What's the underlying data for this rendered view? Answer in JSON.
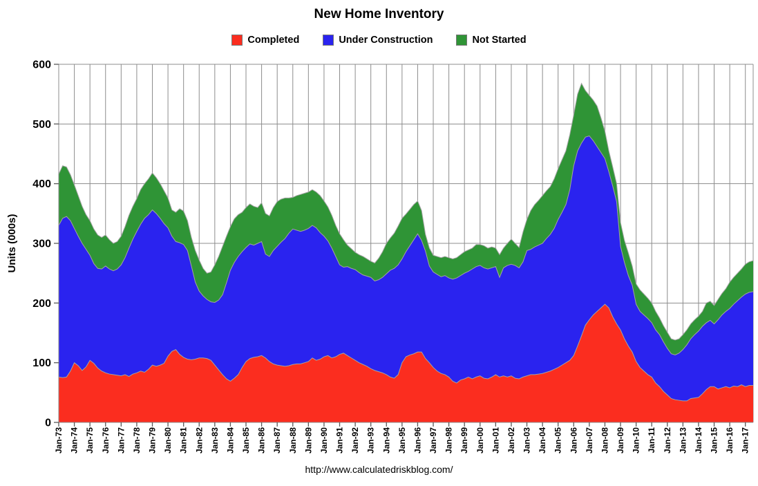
{
  "title": "New Home Inventory",
  "footer_url": "http://www.calculatedriskblog.com/",
  "colors": {
    "completed": "#fb2d1f",
    "under_construction": "#2a23ef",
    "not_started": "#2f9436",
    "grid": "#8c8c8c",
    "area_outline": "#a3a3a3",
    "tick": "#595959",
    "text": "#000000"
  },
  "legend": [
    {
      "label": "Completed",
      "color": "#fb2d1f"
    },
    {
      "label": "Under Construction",
      "color": "#2a23ef"
    },
    {
      "label": "Not Started",
      "color": "#2f9436"
    }
  ],
  "chart_data": {
    "type": "area",
    "stacked": true,
    "title": "New Home Inventory",
    "ylabel": "Units (000s)",
    "ylim": [
      0,
      600
    ],
    "y_ticks": [
      0,
      100,
      200,
      300,
      400,
      500,
      600
    ],
    "grid": true,
    "legend_position": "top",
    "x_start": "Jan-1973",
    "x_end": "Jul-2017",
    "points_per_year": 4,
    "x_tick_labels": [
      "Jan-73",
      "Jan-74",
      "Jan-75",
      "Jan-76",
      "Jan-77",
      "Jan-78",
      "Jan-79",
      "Jan-80",
      "Jan-81",
      "Jan-82",
      "Jan-83",
      "Jan-84",
      "Jan-85",
      "Jan-86",
      "Jan-87",
      "Jan-88",
      "Jan-89",
      "Jan-90",
      "Jan-91",
      "Jan-92",
      "Jan-93",
      "Jan-94",
      "Jan-95",
      "Jan-96",
      "Jan-97",
      "Jan-98",
      "Jan-99",
      "Jan-00",
      "Jan-01",
      "Jan-02",
      "Jan-03",
      "Jan-04",
      "Jan-05",
      "Jan-06",
      "Jan-07",
      "Jan-08",
      "Jan-09",
      "Jan-10",
      "Jan-11",
      "Jan-12",
      "Jan-13",
      "Jan-14",
      "Jan-15",
      "Jan-16",
      "Jan-17"
    ],
    "series": [
      {
        "name": "Completed",
        "color": "#fb2d1f",
        "values": [
          76,
          75,
          76,
          86,
          100,
          95,
          87,
          93,
          104,
          99,
          91,
          86,
          83,
          81,
          80,
          79,
          78,
          80,
          77,
          81,
          83,
          86,
          84,
          89,
          96,
          94,
          96,
          99,
          111,
          119,
          122,
          114,
          109,
          106,
          105,
          106,
          108,
          108,
          107,
          104,
          96,
          88,
          80,
          73,
          69,
          74,
          80,
          92,
          102,
          107,
          109,
          110,
          112,
          108,
          102,
          98,
          96,
          95,
          94,
          95,
          97,
          98,
          98,
          100,
          102,
          108,
          104,
          106,
          110,
          112,
          108,
          110,
          114,
          116,
          112,
          108,
          104,
          100,
          97,
          94,
          90,
          87,
          85,
          83,
          80,
          76,
          74,
          80,
          100,
          110,
          113,
          115,
          118,
          118,
          107,
          100,
          92,
          86,
          82,
          80,
          76,
          69,
          66,
          71,
          73,
          76,
          73,
          76,
          78,
          74,
          73,
          76,
          80,
          76,
          78,
          76,
          78,
          74,
          73,
          76,
          78,
          80,
          80,
          81,
          82,
          84,
          86,
          89,
          92,
          96,
          100,
          104,
          112,
          128,
          145,
          163,
          172,
          180,
          186,
          192,
          198,
          192,
          177,
          165,
          155,
          140,
          128,
          118,
          102,
          92,
          86,
          80,
          76,
          66,
          60,
          52,
          46,
          40,
          38,
          37,
          36,
          36,
          40,
          41,
          42,
          48,
          55,
          60,
          60,
          56,
          58,
          60,
          58,
          61,
          60,
          63,
          60,
          62,
          62
        ]
      },
      {
        "name": "Under Construction",
        "color": "#2a23ef",
        "values": [
          254,
          267,
          269,
          252,
          225,
          217,
          213,
          197,
          176,
          167,
          167,
          171,
          179,
          176,
          174,
          178,
          186,
          196,
          215,
          226,
          237,
          246,
          258,
          259,
          260,
          256,
          246,
          234,
          215,
          193,
          181,
          187,
          189,
          182,
          157,
          129,
          112,
          104,
          99,
          98,
          105,
          117,
          134,
          161,
          186,
          194,
          198,
          194,
          191,
          192,
          188,
          190,
          191,
          174,
          176,
          190,
          199,
          207,
          214,
          222,
          227,
          224,
          222,
          222,
          223,
          222,
          222,
          212,
          202,
          192,
          184,
          168,
          150,
          144,
          149,
          150,
          152,
          151,
          150,
          151,
          153,
          150,
          154,
          160,
          169,
          179,
          184,
          184,
          174,
          176,
          183,
          191,
          198,
          187,
          180,
          162,
          160,
          162,
          162,
          166,
          166,
          171,
          176,
          175,
          177,
          177,
          184,
          185,
          185,
          185,
          184,
          183,
          181,
          167,
          181,
          187,
          187,
          189,
          186,
          193,
          210,
          210,
          214,
          216,
          218,
          224,
          229,
          236,
          248,
          256,
          265,
          286,
          318,
          327,
          323,
          315,
          308,
          292,
          276,
          260,
          244,
          228,
          219,
          205,
          140,
          128,
          118,
          112,
          96,
          94,
          94,
          94,
          91,
          89,
          87,
          83,
          78,
          75,
          75,
          79,
          86,
          94,
          100,
          106,
          111,
          113,
          112,
          111,
          105,
          116,
          122,
          126,
          133,
          137,
          144,
          147,
          155,
          156,
          157
        ]
      },
      {
        "name": "Not Started",
        "color": "#2f9436",
        "values": [
          86,
          88,
          83,
          77,
          73,
          68,
          62,
          58,
          58,
          58,
          56,
          53,
          52,
          49,
          46,
          46,
          48,
          52,
          55,
          55,
          55,
          58,
          58,
          60,
          62,
          60,
          58,
          55,
          50,
          44,
          49,
          57,
          56,
          50,
          48,
          53,
          52,
          46,
          44,
          50,
          63,
          73,
          81,
          78,
          73,
          73,
          70,
          66,
          67,
          67,
          65,
          60,
          65,
          68,
          68,
          72,
          75,
          72,
          68,
          59,
          53,
          58,
          62,
          62,
          61,
          60,
          60,
          62,
          59,
          57,
          55,
          52,
          52,
          46,
          36,
          33,
          29,
          30,
          31,
          29,
          27,
          30,
          36,
          43,
          51,
          54,
          59,
          65,
          68,
          63,
          61,
          59,
          55,
          50,
          28,
          30,
          28,
          30,
          32,
          32,
          34,
          34,
          34,
          35,
          36,
          36,
          35,
          37,
          35,
          37,
          35,
          35,
          31,
          38,
          33,
          37,
          42,
          37,
          34,
          50,
          52,
          65,
          71,
          75,
          80,
          80,
          80,
          83,
          85,
          88,
          90,
          92,
          85,
          95,
          100,
          78,
          68,
          68,
          68,
          58,
          46,
          35,
          32,
          30,
          40,
          37,
          38,
          32,
          34,
          36,
          35,
          34,
          33,
          31,
          28,
          27,
          27,
          25,
          25,
          24,
          25,
          25,
          25,
          25,
          25,
          25,
          33,
          32,
          31,
          34,
          36,
          38,
          44,
          45,
          46,
          47,
          50,
          51,
          52
        ]
      }
    ]
  }
}
